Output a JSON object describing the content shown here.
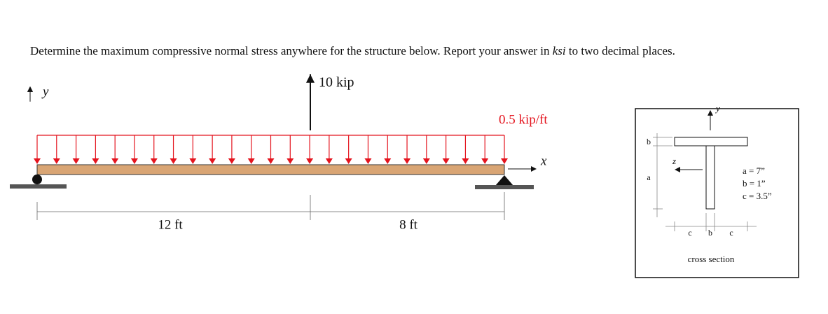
{
  "question": {
    "before": "Determine the maximum compressive normal stress anywhere for the structure below. Report your answer in ",
    "emphasis": "ksi",
    "after": " to two decimal places."
  },
  "beam": {
    "y_axis": "y",
    "x_axis": "x",
    "point_load": "10 kip",
    "distributed_load": "0.5 kip/ft",
    "spans": [
      "12 ft",
      "8 ft"
    ]
  },
  "cross_section": {
    "y_axis": "y",
    "z_axis": "z",
    "dim_b_left": "b",
    "dim_a": "a",
    "dim_c_left": "c",
    "dim_b_bottom": "b",
    "dim_c_right": "c",
    "values": [
      "a = 7”",
      "b = 1”",
      "c = 3.5”"
    ],
    "caption": "cross section"
  }
}
